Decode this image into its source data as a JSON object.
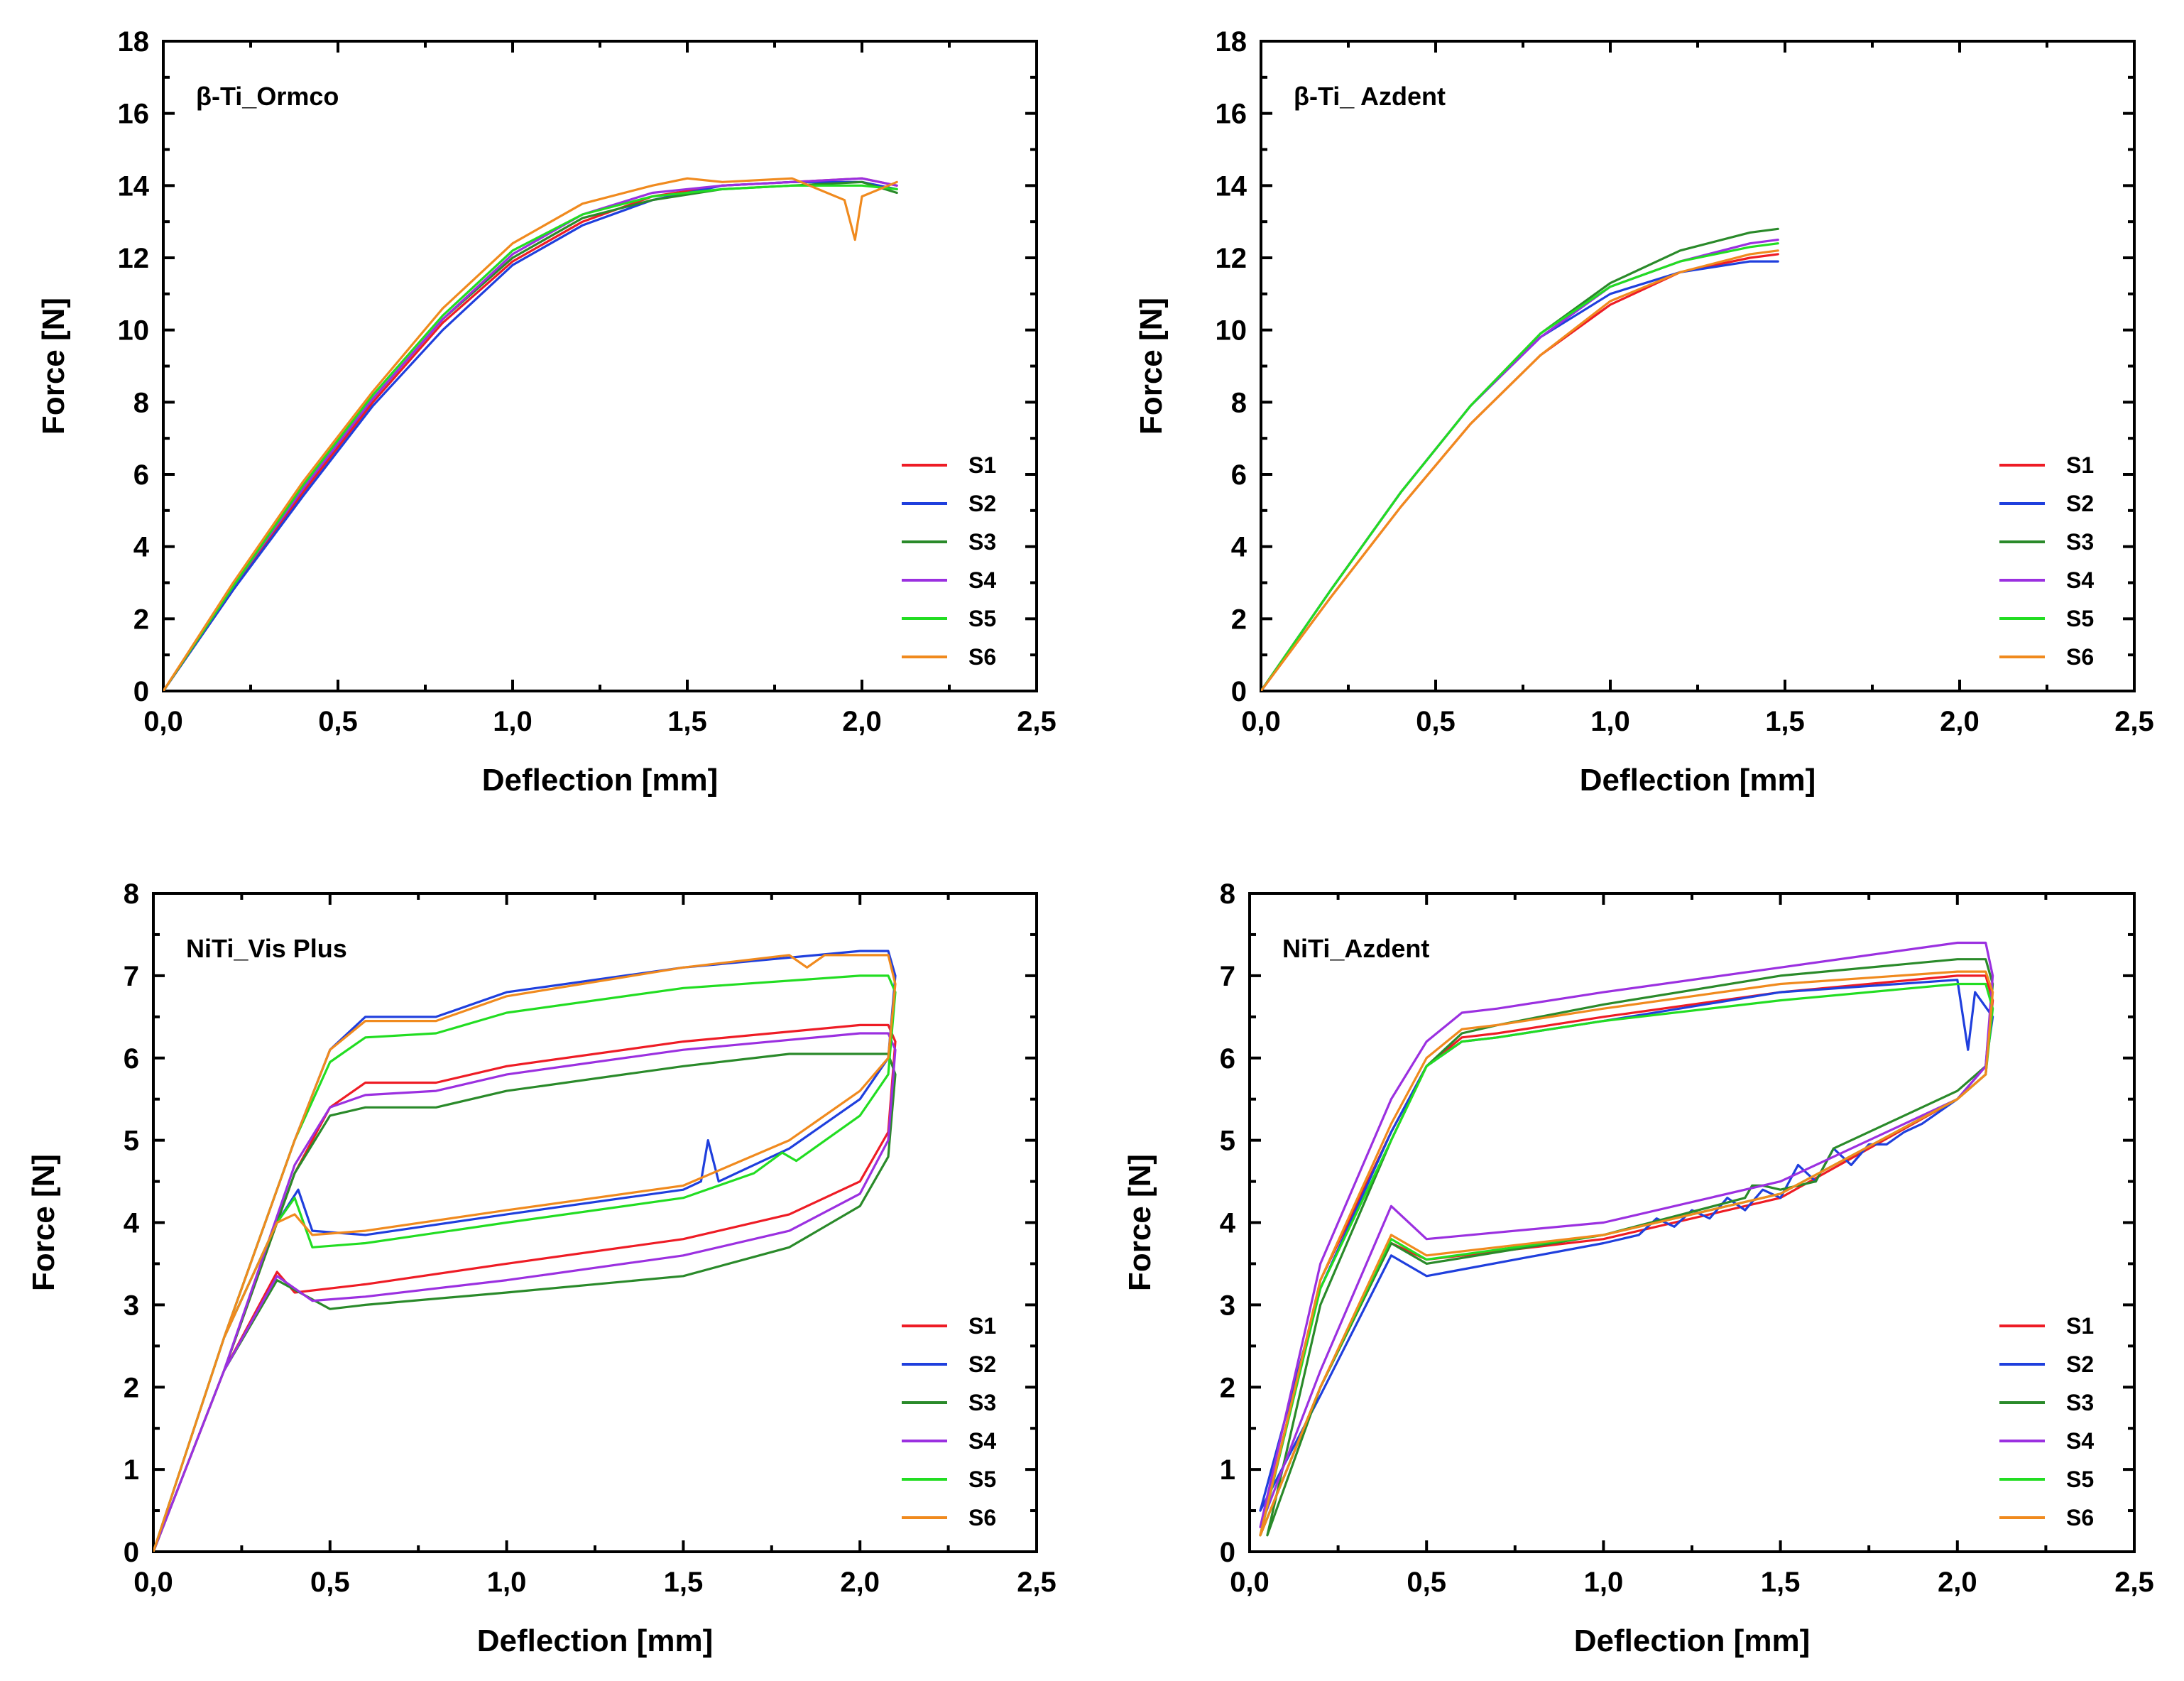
{
  "colors": {
    "S1": "#ee1c25",
    "S2": "#1f3fdd",
    "S3": "#2a8a2a",
    "S4": "#9b30e0",
    "S5": "#22dd22",
    "S6": "#f08a1e"
  },
  "chart_data": [
    {
      "type": "line",
      "title": "β-Ti_Ormco",
      "xlabel": "Deflection [mm]",
      "ylabel": "Force [N]",
      "xlim": [
        0,
        2.5
      ],
      "ylim": [
        0,
        18
      ],
      "xticks": [
        0,
        0.5,
        1.0,
        1.5,
        2.0,
        2.5
      ],
      "xtick_labels": [
        "0,0",
        "0,5",
        "1,0",
        "1,5",
        "2,0",
        "2,5"
      ],
      "yticks": [
        0,
        2,
        4,
        6,
        8,
        10,
        12,
        14,
        16,
        18
      ],
      "ytick_labels": [
        "0",
        "2",
        "4",
        "6",
        "8",
        "10",
        "12",
        "14",
        "16",
        "18"
      ],
      "legend_position": "lower-right",
      "series": [
        {
          "name": "S1",
          "x": [
            0,
            0.2,
            0.4,
            0.6,
            0.8,
            1.0,
            1.2,
            1.4,
            1.6,
            1.8,
            2.0,
            2.1
          ],
          "y": [
            0,
            2.8,
            5.5,
            8.0,
            10.2,
            11.9,
            13.0,
            13.7,
            14.0,
            14.1,
            14.2,
            14.0
          ]
        },
        {
          "name": "S2",
          "x": [
            0,
            0.2,
            0.4,
            0.6,
            0.8,
            1.0,
            1.2,
            1.4,
            1.6,
            1.8,
            2.0,
            2.1
          ],
          "y": [
            0,
            2.8,
            5.4,
            7.9,
            10.0,
            11.8,
            12.9,
            13.6,
            14.0,
            14.1,
            14.1,
            13.9
          ]
        },
        {
          "name": "S3",
          "x": [
            0,
            0.2,
            0.4,
            0.6,
            0.8,
            1.0,
            1.2,
            1.4,
            1.6,
            1.8,
            2.0,
            2.1
          ],
          "y": [
            0,
            2.9,
            5.6,
            8.1,
            10.3,
            12.0,
            13.1,
            13.6,
            13.9,
            14.0,
            14.1,
            13.8
          ]
        },
        {
          "name": "S4",
          "x": [
            0,
            0.2,
            0.4,
            0.6,
            0.8,
            1.0,
            1.2,
            1.4,
            1.6,
            1.8,
            2.0,
            2.1
          ],
          "y": [
            0,
            2.9,
            5.6,
            8.1,
            10.3,
            12.1,
            13.2,
            13.8,
            14.0,
            14.1,
            14.2,
            14.0
          ]
        },
        {
          "name": "S5",
          "x": [
            0,
            0.2,
            0.4,
            0.6,
            0.8,
            1.0,
            1.2,
            1.4,
            1.6,
            1.8,
            2.0,
            2.1
          ],
          "y": [
            0,
            2.9,
            5.7,
            8.2,
            10.4,
            12.2,
            13.2,
            13.7,
            13.9,
            14.0,
            14.0,
            13.9
          ]
        },
        {
          "name": "S6",
          "x": [
            0,
            0.2,
            0.4,
            0.6,
            0.8,
            1.0,
            1.2,
            1.4,
            1.5,
            1.6,
            1.8,
            1.95,
            1.98,
            2.0,
            2.1
          ],
          "y": [
            0,
            3.0,
            5.8,
            8.3,
            10.6,
            12.4,
            13.5,
            14.0,
            14.2,
            14.1,
            14.2,
            13.6,
            12.5,
            13.7,
            14.1
          ]
        }
      ]
    },
    {
      "type": "line",
      "title": "β-Ti_ Azdent",
      "xlabel": "Deflection [mm]",
      "ylabel": "Force [N]",
      "xlim": [
        0,
        2.5
      ],
      "ylim": [
        0,
        18
      ],
      "xticks": [
        0,
        0.5,
        1.0,
        1.5,
        2.0,
        2.5
      ],
      "xtick_labels": [
        "0,0",
        "0,5",
        "1,0",
        "1,5",
        "2,0",
        "2,5"
      ],
      "yticks": [
        0,
        2,
        4,
        6,
        8,
        10,
        12,
        14,
        16,
        18
      ],
      "ytick_labels": [
        "0",
        "2",
        "4",
        "6",
        "8",
        "10",
        "12",
        "14",
        "16",
        "18"
      ],
      "legend_position": "lower-right",
      "series": [
        {
          "name": "S1",
          "x": [
            0,
            0.2,
            0.4,
            0.6,
            0.8,
            1.0,
            1.2,
            1.4,
            1.48
          ],
          "y": [
            0,
            2.6,
            5.1,
            7.4,
            9.3,
            10.7,
            11.6,
            12.0,
            12.1
          ]
        },
        {
          "name": "S2",
          "x": [
            0,
            0.2,
            0.4,
            0.6,
            0.8,
            1.0,
            1.2,
            1.4,
            1.48
          ],
          "y": [
            0,
            2.8,
            5.5,
            7.9,
            9.8,
            11.0,
            11.6,
            11.9,
            11.9
          ]
        },
        {
          "name": "S3",
          "x": [
            0,
            0.2,
            0.4,
            0.6,
            0.8,
            1.0,
            1.2,
            1.4,
            1.48
          ],
          "y": [
            0,
            2.8,
            5.5,
            7.9,
            9.9,
            11.3,
            12.2,
            12.7,
            12.8
          ]
        },
        {
          "name": "S4",
          "x": [
            0,
            0.2,
            0.4,
            0.6,
            0.8,
            1.0,
            1.2,
            1.4,
            1.48
          ],
          "y": [
            0,
            2.8,
            5.5,
            7.9,
            9.8,
            11.2,
            11.9,
            12.4,
            12.5
          ]
        },
        {
          "name": "S5",
          "x": [
            0,
            0.2,
            0.4,
            0.6,
            0.8,
            1.0,
            1.2,
            1.4,
            1.48
          ],
          "y": [
            0,
            2.8,
            5.5,
            7.9,
            9.9,
            11.2,
            11.9,
            12.3,
            12.4
          ]
        },
        {
          "name": "S6",
          "x": [
            0,
            0.2,
            0.4,
            0.6,
            0.8,
            1.0,
            1.2,
            1.4,
            1.48
          ],
          "y": [
            0,
            2.6,
            5.1,
            7.4,
            9.3,
            10.8,
            11.6,
            12.1,
            12.2
          ]
        }
      ]
    },
    {
      "type": "line",
      "title": "NiTi_Vis Plus",
      "xlabel": "Deflection [mm]",
      "ylabel": "Force [N]",
      "xlim": [
        0,
        2.5
      ],
      "ylim": [
        0,
        8
      ],
      "xticks": [
        0,
        0.5,
        1.0,
        1.5,
        2.0,
        2.5
      ],
      "xtick_labels": [
        "0,0",
        "0,5",
        "1,0",
        "1,5",
        "2,0",
        "2,5"
      ],
      "yticks": [
        0,
        1,
        2,
        3,
        4,
        5,
        6,
        7,
        8
      ],
      "ytick_labels": [
        "0",
        "1",
        "2",
        "3",
        "4",
        "5",
        "6",
        "7",
        "8"
      ],
      "legend_position": "lower-right",
      "series": [
        {
          "name": "S1",
          "x": [
            0,
            0.2,
            0.4,
            0.5,
            0.6,
            0.8,
            1.0,
            1.5,
            2.0,
            2.08,
            2.1,
            2.08,
            2.0,
            1.8,
            1.5,
            1.0,
            0.6,
            0.4,
            0.35,
            0.2,
            0
          ],
          "y": [
            0,
            2.2,
            4.6,
            5.4,
            5.7,
            5.7,
            5.9,
            6.2,
            6.4,
            6.4,
            6.2,
            5.1,
            4.5,
            4.1,
            3.8,
            3.5,
            3.25,
            3.15,
            3.4,
            2.2,
            0
          ]
        },
        {
          "name": "S2",
          "x": [
            0,
            0.2,
            0.4,
            0.5,
            0.6,
            0.8,
            1.0,
            1.5,
            2.0,
            2.08,
            2.1,
            2.08,
            2.0,
            1.8,
            1.6,
            1.57,
            1.55,
            1.5,
            1.0,
            0.6,
            0.45,
            0.41,
            0.35,
            0.2,
            0
          ],
          "y": [
            0,
            2.6,
            5.0,
            6.1,
            6.5,
            6.5,
            6.8,
            7.1,
            7.3,
            7.3,
            7.0,
            6.0,
            5.5,
            4.9,
            4.5,
            5.0,
            4.5,
            4.4,
            4.1,
            3.85,
            3.9,
            4.4,
            4.0,
            2.6,
            0
          ]
        },
        {
          "name": "S3",
          "x": [
            0,
            0.2,
            0.4,
            0.5,
            0.6,
            0.8,
            1.0,
            1.5,
            1.8,
            2.0,
            2.08,
            2.1,
            2.08,
            2.0,
            1.8,
            1.5,
            1.0,
            0.6,
            0.5,
            0.35,
            0.2,
            0
          ],
          "y": [
            0,
            2.2,
            4.6,
            5.3,
            5.4,
            5.4,
            5.6,
            5.9,
            6.05,
            6.05,
            6.05,
            5.8,
            4.8,
            4.2,
            3.7,
            3.35,
            3.15,
            3.0,
            2.95,
            3.3,
            2.2,
            0
          ]
        },
        {
          "name": "S4",
          "x": [
            0,
            0.2,
            0.4,
            0.5,
            0.6,
            0.8,
            1.0,
            1.5,
            2.0,
            2.08,
            2.1,
            2.08,
            2.0,
            1.8,
            1.5,
            1.0,
            0.6,
            0.45,
            0.35,
            0.2,
            0
          ],
          "y": [
            0,
            2.2,
            4.7,
            5.4,
            5.55,
            5.6,
            5.8,
            6.1,
            6.3,
            6.3,
            6.1,
            5.0,
            4.35,
            3.9,
            3.6,
            3.3,
            3.1,
            3.05,
            3.35,
            2.2,
            0
          ]
        },
        {
          "name": "S5",
          "x": [
            0,
            0.2,
            0.4,
            0.5,
            0.6,
            0.8,
            1.0,
            1.5,
            2.0,
            2.08,
            2.1,
            2.08,
            2.0,
            1.82,
            1.78,
            1.7,
            1.5,
            1.0,
            0.6,
            0.45,
            0.4,
            0.35,
            0.2,
            0
          ],
          "y": [
            0,
            2.6,
            5.0,
            5.95,
            6.25,
            6.3,
            6.55,
            6.85,
            7.0,
            7.0,
            6.8,
            5.8,
            5.3,
            4.75,
            4.85,
            4.6,
            4.3,
            4.0,
            3.75,
            3.7,
            4.3,
            4.0,
            2.6,
            0
          ]
        },
        {
          "name": "S6",
          "x": [
            0,
            0.2,
            0.4,
            0.5,
            0.6,
            0.8,
            1.0,
            1.5,
            1.8,
            1.85,
            1.9,
            2.0,
            2.08,
            2.1,
            2.08,
            2.0,
            1.8,
            1.5,
            1.0,
            0.6,
            0.45,
            0.4,
            0.35,
            0.2,
            0
          ],
          "y": [
            0,
            2.6,
            5.0,
            6.1,
            6.45,
            6.45,
            6.75,
            7.1,
            7.25,
            7.1,
            7.25,
            7.25,
            7.25,
            6.9,
            6.0,
            5.6,
            5.0,
            4.45,
            4.15,
            3.9,
            3.85,
            4.1,
            4.0,
            2.6,
            0
          ]
        }
      ]
    },
    {
      "type": "line",
      "title": "NiTi_Azdent",
      "xlabel": "Deflection [mm]",
      "ylabel": "Force [N]",
      "xlim": [
        0,
        2.5
      ],
      "ylim": [
        0,
        8
      ],
      "xticks": [
        0,
        0.5,
        1.0,
        1.5,
        2.0,
        2.5
      ],
      "xtick_labels": [
        "0,0",
        "0,5",
        "1,0",
        "1,5",
        "2,0",
        "2,5"
      ],
      "yticks": [
        0,
        1,
        2,
        3,
        4,
        5,
        6,
        7,
        8
      ],
      "ytick_labels": [
        "0",
        "1",
        "2",
        "3",
        "4",
        "5",
        "6",
        "7",
        "8"
      ],
      "legend_position": "lower-right",
      "series": [
        {
          "name": "S1",
          "x": [
            0.03,
            0.2,
            0.4,
            0.5,
            0.6,
            0.7,
            1.0,
            1.5,
            2.0,
            2.08,
            2.1,
            2.08,
            2.0,
            1.5,
            1.0,
            0.5,
            0.4,
            0.2,
            0.03
          ],
          "y": [
            0.2,
            3.3,
            5.1,
            5.9,
            6.25,
            6.3,
            6.5,
            6.8,
            7.0,
            7.0,
            6.7,
            5.8,
            5.5,
            4.3,
            3.8,
            3.55,
            3.75,
            2.0,
            0.2
          ]
        },
        {
          "name": "S2",
          "x": [
            0.03,
            0.2,
            0.4,
            0.5,
            0.6,
            0.7,
            1.0,
            1.5,
            2.0,
            2.03,
            2.05,
            2.1,
            2.08,
            2.0,
            1.9,
            1.85,
            1.8,
            1.75,
            1.7,
            1.65,
            1.6,
            1.55,
            1.5,
            1.45,
            1.4,
            1.35,
            1.3,
            1.25,
            1.2,
            1.15,
            1.1,
            1.0,
            0.5,
            0.4,
            0.2,
            0.03
          ],
          "y": [
            0.5,
            3.2,
            5.1,
            5.9,
            6.2,
            6.25,
            6.45,
            6.8,
            6.95,
            6.1,
            6.8,
            6.5,
            5.9,
            5.5,
            5.2,
            5.1,
            4.95,
            4.95,
            4.7,
            4.9,
            4.5,
            4.7,
            4.3,
            4.4,
            4.15,
            4.3,
            4.05,
            4.15,
            3.95,
            4.05,
            3.85,
            3.75,
            3.35,
            3.6,
            1.9,
            0.5
          ]
        },
        {
          "name": "S3",
          "x": [
            0.05,
            0.2,
            0.4,
            0.5,
            0.6,
            0.7,
            1.0,
            1.5,
            2.0,
            2.08,
            2.1,
            2.08,
            2.0,
            1.65,
            1.6,
            1.5,
            1.45,
            1.42,
            1.4,
            1.0,
            0.5,
            0.4,
            0.2,
            0.05
          ],
          "y": [
            0.2,
            3.0,
            5.0,
            5.9,
            6.3,
            6.4,
            6.65,
            7.0,
            7.2,
            7.2,
            6.9,
            5.9,
            5.6,
            4.9,
            4.5,
            4.4,
            4.45,
            4.45,
            4.3,
            3.85,
            3.5,
            3.75,
            2.0,
            0.2
          ]
        },
        {
          "name": "S4",
          "x": [
            0.03,
            0.2,
            0.4,
            0.5,
            0.6,
            0.7,
            1.0,
            1.5,
            2.0,
            2.08,
            2.1,
            2.08,
            2.0,
            1.5,
            1.0,
            0.5,
            0.4,
            0.2,
            0.03
          ],
          "y": [
            0.3,
            3.5,
            5.5,
            6.2,
            6.55,
            6.6,
            6.8,
            7.1,
            7.4,
            7.4,
            7.0,
            5.9,
            5.5,
            4.5,
            4.0,
            3.8,
            4.2,
            2.2,
            0.3
          ]
        },
        {
          "name": "S5",
          "x": [
            0.03,
            0.2,
            0.4,
            0.5,
            0.6,
            0.7,
            1.0,
            1.5,
            2.0,
            2.08,
            2.1,
            2.08,
            2.0,
            1.5,
            1.0,
            0.5,
            0.4,
            0.2,
            0.03
          ],
          "y": [
            0.2,
            3.2,
            5.0,
            5.9,
            6.2,
            6.25,
            6.45,
            6.7,
            6.9,
            6.9,
            6.6,
            5.8,
            5.5,
            4.35,
            3.85,
            3.55,
            3.8,
            2.0,
            0.2
          ]
        },
        {
          "name": "S6",
          "x": [
            0.03,
            0.2,
            0.4,
            0.5,
            0.6,
            0.7,
            1.0,
            1.5,
            2.0,
            2.08,
            2.1,
            2.08,
            2.0,
            1.5,
            1.0,
            0.5,
            0.4,
            0.2,
            0.03
          ],
          "y": [
            0.2,
            3.3,
            5.2,
            6.0,
            6.35,
            6.4,
            6.6,
            6.9,
            7.05,
            7.05,
            6.8,
            5.8,
            5.5,
            4.35,
            3.85,
            3.6,
            3.85,
            2.0,
            0.2
          ]
        }
      ]
    }
  ]
}
